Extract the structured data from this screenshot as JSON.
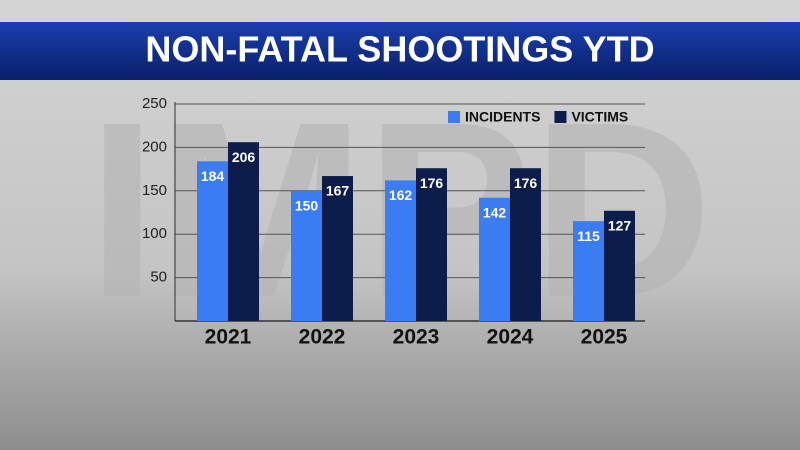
{
  "watermark": "IMPD",
  "chart_data": {
    "type": "bar",
    "title": "NON-FATAL SHOOTINGS YTD",
    "categories": [
      "2021",
      "2022",
      "2023",
      "2024",
      "2025"
    ],
    "series": [
      {
        "name": "INCIDENTS",
        "color": "#3b7cf2",
        "values": [
          184,
          150,
          162,
          142,
          115
        ]
      },
      {
        "name": "VICTIMS",
        "color": "#0c1d4c",
        "values": [
          206,
          167,
          176,
          176,
          127
        ]
      }
    ],
    "ylim": [
      0,
      250
    ],
    "yticks": [
      50,
      100,
      150,
      200,
      250
    ],
    "grid": true,
    "legend": "top-right"
  }
}
